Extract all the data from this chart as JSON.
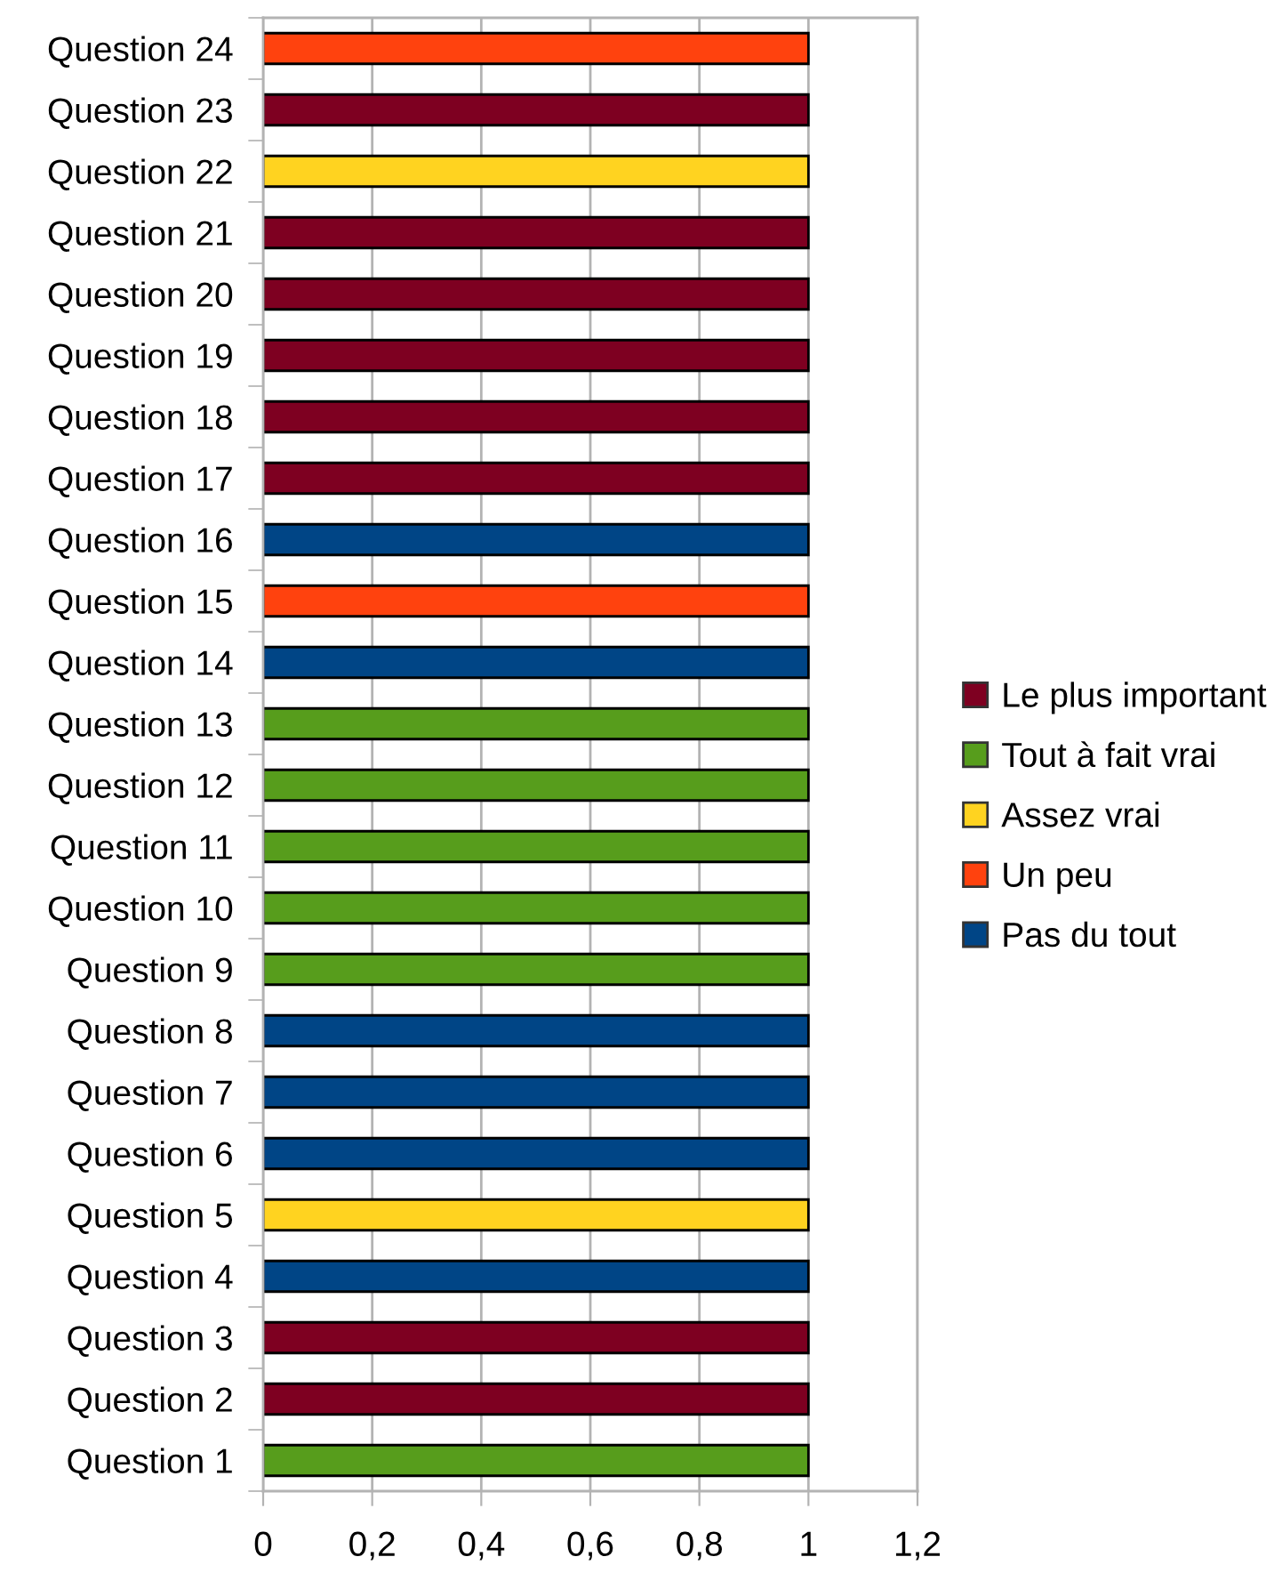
{
  "chart_data": {
    "type": "bar",
    "orientation": "horizontal",
    "stacked": true,
    "categories": [
      "Question 24",
      "Question 23",
      "Question 22",
      "Question 21",
      "Question 20",
      "Question 19",
      "Question 18",
      "Question 17",
      "Question 16",
      "Question 15",
      "Question 14",
      "Question 13",
      "Question 12",
      "Question 11",
      "Question 10",
      "Question 9",
      "Question 8",
      "Question 7",
      "Question 6",
      "Question 5",
      "Question 4",
      "Question 3",
      "Question 2",
      "Question 1"
    ],
    "series": [
      {
        "name": "Le plus important",
        "color": "#7e0021",
        "values": [
          null,
          1,
          null,
          1,
          1,
          1,
          1,
          1,
          null,
          null,
          null,
          null,
          null,
          null,
          null,
          null,
          null,
          null,
          null,
          null,
          null,
          1,
          1,
          null
        ]
      },
      {
        "name": "Tout à fait vrai",
        "color": "#579d1c",
        "values": [
          null,
          null,
          null,
          null,
          null,
          null,
          null,
          null,
          null,
          null,
          null,
          1,
          1,
          1,
          1,
          1,
          null,
          null,
          null,
          null,
          null,
          null,
          null,
          1
        ]
      },
      {
        "name": "Assez vrai",
        "color": "#ffd320",
        "values": [
          null,
          null,
          1,
          null,
          null,
          null,
          null,
          null,
          null,
          null,
          null,
          null,
          null,
          null,
          null,
          null,
          null,
          null,
          null,
          1,
          null,
          null,
          null,
          null
        ]
      },
      {
        "name": "Un peu",
        "color": "#ff420e",
        "values": [
          1,
          null,
          null,
          null,
          null,
          null,
          null,
          null,
          null,
          1,
          null,
          null,
          null,
          null,
          null,
          null,
          null,
          null,
          null,
          null,
          null,
          null,
          null,
          null
        ]
      },
      {
        "name": "Pas du tout",
        "color": "#004586",
        "values": [
          null,
          null,
          null,
          null,
          null,
          null,
          null,
          null,
          1,
          null,
          1,
          null,
          null,
          null,
          null,
          null,
          1,
          1,
          1,
          null,
          1,
          null,
          null,
          null
        ]
      }
    ],
    "xlim": [
      0,
      1.2
    ],
    "xticks": [
      0,
      {
        "value": 0.2,
        "label": "0,2"
      },
      {
        "value": 0.4,
        "label": "0,4"
      },
      {
        "value": 0.6,
        "label": "0,6"
      },
      {
        "value": 0.8,
        "label": "0,8"
      },
      1,
      {
        "value": 1.2,
        "label": "1,2"
      }
    ],
    "grid": "x",
    "legend": "right"
  }
}
